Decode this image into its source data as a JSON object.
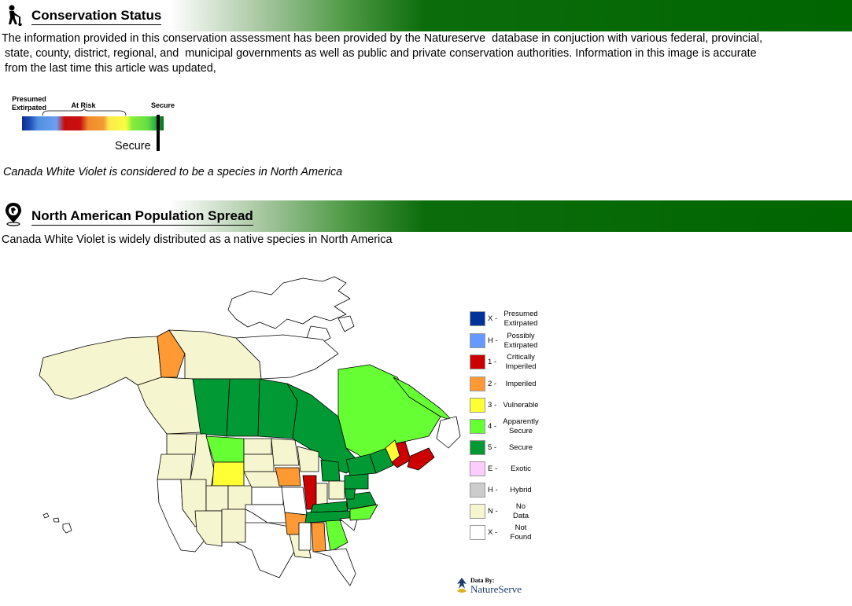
{
  "conservation": {
    "title": "Conservation Status",
    "description": "The information provided in this conservation assessment has been provided by the Natureserve database in conjuction with various federal, provincial, state, county, district, regional, and municipal governments as well as public and private conservation authorities. Information in this image is accurate from the last time this article was updated,",
    "desc_lines": [
      "The information provided in this conservation assessment has been provided by the Natureserve  database in conjuction with various federal, provincial,",
      " state, county, district, regional, and  municipal governments as well as public and private conservation authorities. Information in this image is accurate",
      " from the last time this article was updated,"
    ],
    "scale": {
      "label_presumed": "Presumed Extirpated",
      "label_presumed_1": "Presumed",
      "label_presumed_2": "Extirpated",
      "label_at_risk": "At Risk",
      "label_secure": "Secure",
      "marker_label": "Secure",
      "marker_position": 0.96
    },
    "status_sentence": "Canada White Violet is considered to be a species in North America"
  },
  "population": {
    "title": "North American Population Spread",
    "sentence": "Canada White Violet is widely distributed as a native species in North America"
  },
  "legend": [
    {
      "code": "X -",
      "label_1": "Presumed",
      "label_2": "Extirpated",
      "color": "#003399"
    },
    {
      "code": "H -",
      "label_1": "Possibly",
      "label_2": "Extirpated",
      "color": "#6699ff"
    },
    {
      "code": "1 -",
      "label_1": "Critically",
      "label_2": "Imperiled",
      "color": "#cc0000"
    },
    {
      "code": "2 -",
      "label_1": "Imperiled",
      "label_2": "",
      "color": "#ff9933"
    },
    {
      "code": "3 -",
      "label_1": "Vulnerable",
      "label_2": "",
      "color": "#ffff33"
    },
    {
      "code": "4 -",
      "label_1": "Apparently",
      "label_2": "Secure",
      "color": "#66ff33"
    },
    {
      "code": "5 -",
      "label_1": "Secure",
      "label_2": "",
      "color": "#009933"
    },
    {
      "code": "E -",
      "label_1": "Exotic",
      "label_2": "",
      "color": "#ffccff"
    },
    {
      "code": "H -",
      "label_1": "Hybrid",
      "label_2": "",
      "color": "#cccccc"
    },
    {
      "code": "N -",
      "label_1": "No",
      "label_2": "Data",
      "color": "#f5f5d0"
    },
    {
      "code": "X -",
      "label_1": "Not",
      "label_2": "Found",
      "color": "#ffffff"
    }
  ],
  "credit": {
    "by": "Data By:",
    "name": "NatureServe"
  },
  "icons": {
    "conservation": "person-planting-icon",
    "population": "map-pin-globe-icon"
  }
}
